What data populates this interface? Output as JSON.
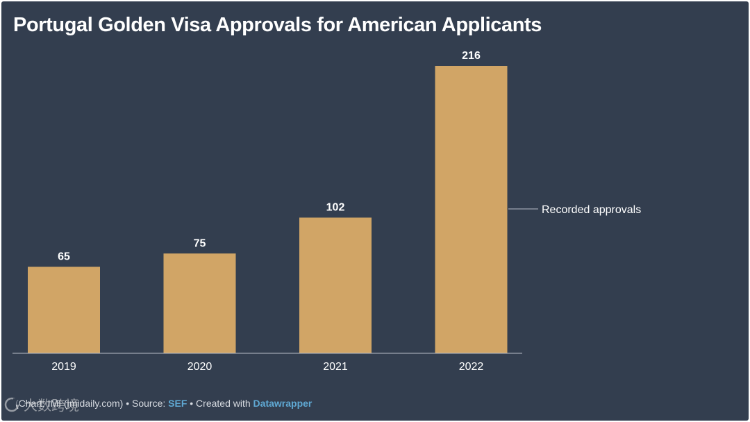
{
  "title": "Portugal Golden Visa Approvals for American Applicants",
  "footer": {
    "credit": "(Chart: IMI (imidaily.com)",
    "sep1": " • Source: ",
    "source": "SEF",
    "sep2": " • Created with ",
    "tool": "Datawrapper"
  },
  "watermark": {
    "text": "大数跨境"
  },
  "colors": {
    "background": "#333e4f",
    "bar": "#d1a566",
    "axis": "#b9bfc8",
    "text": "#ffffff",
    "link": "#5fa8d3"
  },
  "chart_data": {
    "type": "bar",
    "title": "Portugal Golden Visa Approvals for American Applicants",
    "categories": [
      "2019",
      "2020",
      "2021",
      "2022"
    ],
    "values": [
      65,
      75,
      102,
      216
    ],
    "value_labels": [
      "65",
      "75",
      "102",
      "216"
    ],
    "series": [
      {
        "name": "Recorded approvals",
        "values": [
          65,
          75,
          102,
          216
        ]
      }
    ],
    "annotation": "Recorded approvals",
    "ylim": [
      0,
      216
    ],
    "grid": false,
    "xlabel": "",
    "ylabel": ""
  }
}
